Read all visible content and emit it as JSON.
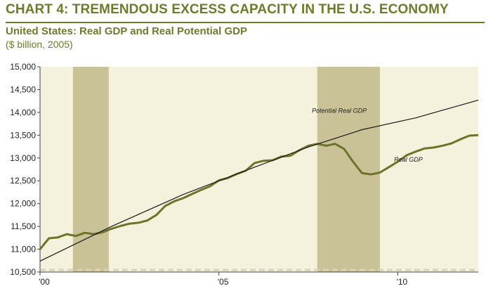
{
  "header": {
    "title": "CHART 4: TREMENDOUS EXCESS CAPACITY IN THE U.S. ECONOMY",
    "subtitle": "United States: Real GDP and Real Potential GDP",
    "units": "($ billion, 2005)"
  },
  "colors": {
    "plot_background": "#f4f1dc",
    "recession_band": "#c9c296",
    "real_gdp_line": "#6d7429",
    "potential_gdp_line": "#1a1a1a",
    "header_text": "#6f7a2b"
  },
  "chart_data": {
    "type": "line",
    "title": "United States: Real GDP and Real Potential GDP",
    "ylabel": "($ billion, 2005)",
    "xlim": [
      2000.0,
      2012.25
    ],
    "ylim": [
      10500,
      15000
    ],
    "yticks": [
      {
        "value": 10500,
        "label": "10,500"
      },
      {
        "value": 11000,
        "label": "11,000"
      },
      {
        "value": 11500,
        "label": "11,500"
      },
      {
        "value": 12000,
        "label": "12,000"
      },
      {
        "value": 12500,
        "label": "12,500"
      },
      {
        "value": 13000,
        "label": "13,000"
      },
      {
        "value": 13500,
        "label": "13,500"
      },
      {
        "value": 14000,
        "label": "14,000"
      },
      {
        "value": 14500,
        "label": "14,500"
      },
      {
        "value": 15000,
        "label": "15,000"
      }
    ],
    "xticks": [
      {
        "value": 2000,
        "label": "'00"
      },
      {
        "value": 2005,
        "label": "'05"
      },
      {
        "value": 2010,
        "label": "'10"
      }
    ],
    "grid": false,
    "recessions": [
      [
        2000.92,
        2001.92
      ],
      [
        2007.75,
        2009.5
      ]
    ],
    "series": [
      {
        "name": "Real GDP",
        "color": "#6d7429",
        "x": [
          2000.0,
          2000.25,
          2000.5,
          2000.75,
          2001.0,
          2001.25,
          2001.5,
          2001.75,
          2002.0,
          2002.25,
          2002.5,
          2002.75,
          2003.0,
          2003.25,
          2003.5,
          2003.75,
          2004.0,
          2004.25,
          2004.5,
          2004.75,
          2005.0,
          2005.25,
          2005.5,
          2005.75,
          2006.0,
          2006.25,
          2006.5,
          2006.75,
          2007.0,
          2007.25,
          2007.5,
          2007.75,
          2008.0,
          2008.25,
          2008.5,
          2008.75,
          2009.0,
          2009.25,
          2009.5,
          2009.75,
          2010.0,
          2010.25,
          2010.5,
          2010.75,
          2011.0,
          2011.25,
          2011.5,
          2011.75,
          2012.0,
          2012.25
        ],
        "values": [
          11000,
          11240,
          11260,
          11330,
          11290,
          11360,
          11330,
          11370,
          11450,
          11510,
          11560,
          11580,
          11630,
          11750,
          11950,
          12050,
          12120,
          12210,
          12300,
          12380,
          12510,
          12560,
          12650,
          12720,
          12890,
          12940,
          12950,
          13030,
          13050,
          13170,
          13270,
          13310,
          13270,
          13310,
          13200,
          12920,
          12670,
          12640,
          12680,
          12800,
          12920,
          13060,
          13140,
          13210,
          13230,
          13270,
          13320,
          13410,
          13490,
          13500
        ]
      },
      {
        "name": "Potential Real GDP",
        "color": "#1a1a1a",
        "x": [
          2000.0,
          2002.0,
          2004.0,
          2006.0,
          2007.5,
          2009.0,
          2010.5,
          2012.25
        ],
        "values": [
          10740,
          11500,
          12200,
          12800,
          13240,
          13620,
          13880,
          14270
        ]
      }
    ]
  }
}
